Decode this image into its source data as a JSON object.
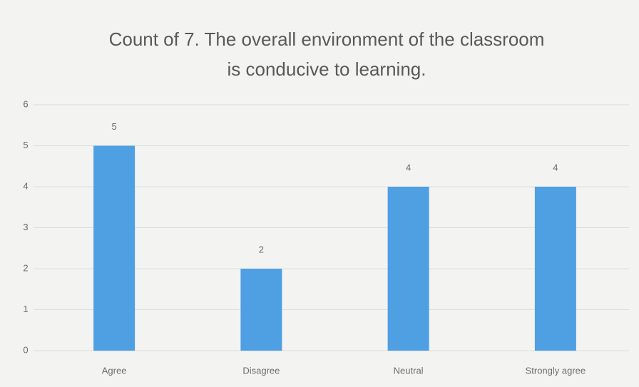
{
  "chart_data": {
    "type": "bar",
    "title": "Count of 7. The overall environment of the classroom is conducive to learning.",
    "categories": [
      "Agree",
      "Disagree",
      "Neutral",
      "Strongly agree"
    ],
    "values": [
      5,
      2,
      4,
      4
    ],
    "color": "#4f9fe3",
    "ylim": [
      0,
      6
    ],
    "yticks": [
      0,
      1,
      2,
      3,
      4,
      5,
      6
    ],
    "grid": true,
    "data_labels": true
  }
}
